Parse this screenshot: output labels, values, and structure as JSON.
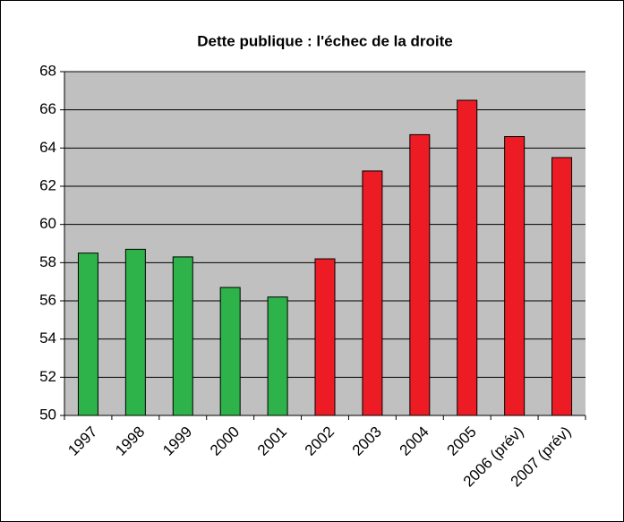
{
  "chart_data": {
    "type": "bar",
    "title": "Dette publique : l'échec de la droite",
    "categories": [
      "1997",
      "1998",
      "1999",
      "2000",
      "2001",
      "2002",
      "2003",
      "2004",
      "2005",
      "2006 (prév)",
      "2007 (prév)"
    ],
    "values": [
      58.5,
      58.7,
      58.3,
      56.7,
      56.2,
      58.2,
      62.8,
      64.7,
      66.5,
      64.6,
      63.5
    ],
    "colors": [
      "#2db34a",
      "#2db34a",
      "#2db34a",
      "#2db34a",
      "#2db34a",
      "#ed1c24",
      "#ed1c24",
      "#ed1c24",
      "#ed1c24",
      "#ed1c24",
      "#ed1c24"
    ],
    "ylim": [
      50,
      68
    ],
    "yticks": [
      50,
      52,
      54,
      56,
      58,
      60,
      62,
      64,
      66,
      68
    ],
    "grid": true
  }
}
